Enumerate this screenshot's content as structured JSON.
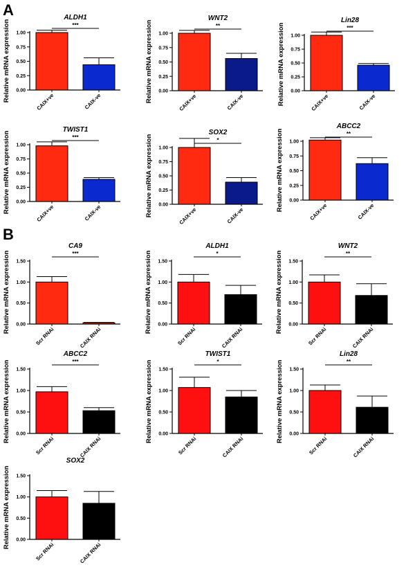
{
  "panels": [
    {
      "letter": "A"
    },
    {
      "letter": "B"
    }
  ],
  "colors": {
    "red": "#ff2a10",
    "red_b": "#ff1010",
    "blue": "#0a2ad0",
    "navy": "#0a1a88",
    "black": "#000000"
  },
  "chart_data": [
    {
      "type": "bar",
      "panel": "A",
      "title": "ALDH1",
      "ylabel": "Relative mRNA expression",
      "categories": [
        "CAIX+ve",
        "CAIX-ve"
      ],
      "values": [
        1.0,
        0.44
      ],
      "errors": [
        0.04,
        0.12
      ],
      "colors": [
        "#ff2a10",
        "#0a2ad0"
      ],
      "significance": "***",
      "ylim": [
        0,
        1.0
      ],
      "yticks": [
        "0.00",
        "0.25",
        "0.50",
        "0.75",
        "1.00"
      ]
    },
    {
      "type": "bar",
      "panel": "A",
      "title": "WNT2",
      "ylabel": "Relative mRNA expression",
      "categories": [
        "CAIX+ve",
        "CAIX-ve"
      ],
      "values": [
        1.0,
        0.56
      ],
      "errors": [
        0.05,
        0.09
      ],
      "colors": [
        "#ff2a10",
        "#0a1a88"
      ],
      "significance": "**",
      "ylim": [
        0,
        1.0
      ],
      "yticks": [
        "0.00",
        "0.25",
        "0.50",
        "0.75",
        "1.00"
      ]
    },
    {
      "type": "bar",
      "panel": "A",
      "title": "Lin28",
      "ylabel": "Relative mRNA expression",
      "categories": [
        "CAIX+ve",
        "CAIX-ve"
      ],
      "values": [
        1.0,
        0.46
      ],
      "errors": [
        0.06,
        0.03
      ],
      "colors": [
        "#ff2a10",
        "#0a2ad0"
      ],
      "significance": "***",
      "ylim": [
        0,
        1.0
      ],
      "yticks": [
        "0.00",
        "0.25",
        "0.50",
        "0.75",
        "1.00"
      ]
    },
    {
      "type": "bar",
      "panel": "A",
      "title": "TWIST1",
      "ylabel": "Relative mRNA expression",
      "categories": [
        "CAIX+ve",
        "CAIX-ve"
      ],
      "values": [
        0.98,
        0.39
      ],
      "errors": [
        0.07,
        0.03
      ],
      "colors": [
        "#ff2a10",
        "#0a2ad0"
      ],
      "significance": "***",
      "ylim": [
        0,
        1.0
      ],
      "yticks": [
        "0.00",
        "0.25",
        "0.50",
        "0.75",
        "1.00"
      ]
    },
    {
      "type": "bar",
      "panel": "A",
      "title": "SOX2",
      "ylabel": "Relative mRNA expression",
      "categories": [
        "CAIX+ve",
        "CAIX-ve"
      ],
      "values": [
        1.0,
        0.39
      ],
      "errors": [
        0.16,
        0.08
      ],
      "colors": [
        "#ff2a10",
        "#0a1a88"
      ],
      "significance": "*",
      "ylim": [
        0,
        1.0
      ],
      "yticks": [
        "0.00",
        "0.25",
        "0.50",
        "0.75",
        "1.00"
      ]
    },
    {
      "type": "bar",
      "panel": "A",
      "title": "ABCC2",
      "ylabel": "Relative mRNA expression",
      "categories": [
        "CAIX+ve",
        "CAIX-ve"
      ],
      "values": [
        1.02,
        0.62
      ],
      "errors": [
        0.04,
        0.1
      ],
      "colors": [
        "#ff2a10",
        "#0a2ad0"
      ],
      "significance": "**",
      "ylim": [
        0,
        1.0
      ],
      "yticks": [
        "0.00",
        "0.25",
        "0.50",
        "0.75",
        "1.00"
      ]
    },
    {
      "type": "bar",
      "panel": "B",
      "title": "CA9",
      "ylabel": "Relative mRNA expression",
      "categories": [
        "Scr RNAi",
        "CAIX RNAi"
      ],
      "values": [
        1.0,
        0.03
      ],
      "errors": [
        0.13,
        0.01
      ],
      "colors": [
        "#ff2a10",
        "#ff2a10"
      ],
      "significance": "***",
      "ylim": [
        0,
        1.5
      ],
      "yticks": [
        "0.00",
        "0.50",
        "1.00",
        "1.50"
      ]
    },
    {
      "type": "bar",
      "panel": "B",
      "title": "ALDH1",
      "ylabel": "Relative mRNA expression",
      "categories": [
        "Scr RNAi",
        "CAIX RNAi"
      ],
      "values": [
        1.0,
        0.7
      ],
      "errors": [
        0.18,
        0.22
      ],
      "colors": [
        "#ff1010",
        "#000000"
      ],
      "significance": "*",
      "ylim": [
        0,
        1.5
      ],
      "yticks": [
        "0.00",
        "0.50",
        "1.00",
        "1.50"
      ]
    },
    {
      "type": "bar",
      "panel": "B",
      "title": "WNT2",
      "ylabel": "Relative mRNA expression",
      "categories": [
        "Scr RNAi",
        "CAIX RNAi"
      ],
      "values": [
        1.0,
        0.68
      ],
      "errors": [
        0.17,
        0.28
      ],
      "colors": [
        "#ff1010",
        "#000000"
      ],
      "significance": "**",
      "ylim": [
        0,
        1.5
      ],
      "yticks": [
        "0.00",
        "0.50",
        "1.00",
        "1.50"
      ]
    },
    {
      "type": "bar",
      "panel": "B",
      "title": "ABCC2",
      "ylabel": "Relative mRNA expression",
      "categories": [
        "Scr RNAi",
        "CAIX RNAi"
      ],
      "values": [
        0.97,
        0.53
      ],
      "errors": [
        0.12,
        0.07
      ],
      "colors": [
        "#ff1010",
        "#000000"
      ],
      "significance": "***",
      "ylim": [
        0,
        1.5
      ],
      "yticks": [
        "0.00",
        "0.50",
        "1.00",
        "1.50"
      ]
    },
    {
      "type": "bar",
      "panel": "B",
      "title": "TWIST1",
      "ylabel": "Relative mRNA expression",
      "categories": [
        "Scr RNAi",
        "CAIX RNAi"
      ],
      "values": [
        1.07,
        0.85
      ],
      "errors": [
        0.24,
        0.15
      ],
      "colors": [
        "#ff1010",
        "#000000"
      ],
      "significance": "*",
      "ylim": [
        0,
        1.5
      ],
      "yticks": [
        "0.00",
        "0.50",
        "1.00",
        "1.50"
      ]
    },
    {
      "type": "bar",
      "panel": "B",
      "title": "Lin28",
      "ylabel": "Relative mRNA expression",
      "categories": [
        "Scr RNAi",
        "CAIX RNAi"
      ],
      "values": [
        1.0,
        0.61
      ],
      "errors": [
        0.13,
        0.26
      ],
      "colors": [
        "#ff1010",
        "#000000"
      ],
      "significance": "**",
      "ylim": [
        0,
        1.5
      ],
      "yticks": [
        "0.00",
        "0.50",
        "1.00",
        "1.50"
      ]
    },
    {
      "type": "bar",
      "panel": "B",
      "title": "SOX2",
      "ylabel": "Relative mRNA expression",
      "categories": [
        "Scr RNAi",
        "CAIX RNAi"
      ],
      "values": [
        1.0,
        0.85
      ],
      "errors": [
        0.15,
        0.28
      ],
      "colors": [
        "#ff1010",
        "#000000"
      ],
      "significance": "",
      "ylim": [
        0,
        1.5
      ],
      "yticks": [
        "0.00",
        "0.50",
        "1.00",
        "1.50"
      ]
    }
  ]
}
